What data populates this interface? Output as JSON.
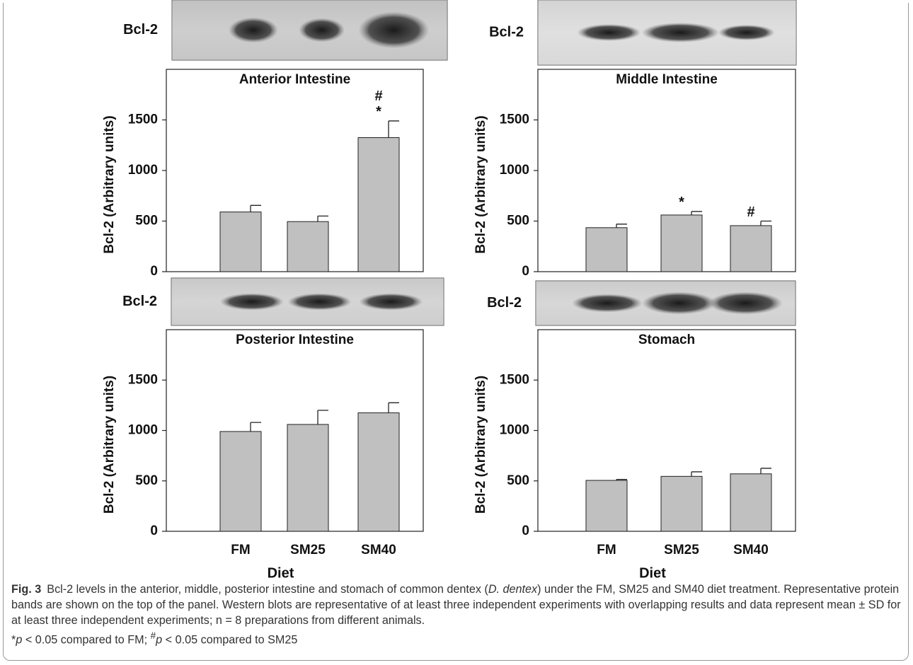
{
  "chart_data": [
    {
      "type": "bar",
      "title": "Anterior Intestine",
      "blot_label": "Bcl-2",
      "ylabel": "Bcl-2 (Arbitrary units)",
      "categories": [
        null,
        null,
        null
      ],
      "values": [
        590,
        495,
        1325
      ],
      "errors": [
        65,
        55,
        165
      ],
      "markers": [
        [],
        [],
        [
          "#",
          "*"
        ]
      ],
      "color": "#c0c0c0",
      "ylim": [
        0,
        2000
      ],
      "yticks": [
        0,
        500,
        1000,
        1500
      ],
      "grid": false
    },
    {
      "type": "bar",
      "title": "Middle Intestine",
      "blot_label": "Bcl-2",
      "ylabel": "Bcl-2 (Arbitrary units)",
      "categories": [
        null,
        null,
        null
      ],
      "values": [
        435,
        560,
        455
      ],
      "errors": [
        35,
        35,
        45
      ],
      "markers": [
        [],
        [
          "*"
        ],
        [
          "#"
        ]
      ],
      "color": "#c0c0c0",
      "ylim": [
        0,
        2000
      ],
      "yticks": [
        0,
        500,
        1000,
        1500
      ],
      "grid": false
    },
    {
      "type": "bar",
      "title": "Posterior Intestine",
      "blot_label": "Bcl-2",
      "ylabel": "Bcl-2 (Arbitrary units)",
      "xlabel": "Diet",
      "categories": [
        "FM",
        "SM25",
        "SM40"
      ],
      "values": [
        990,
        1060,
        1175
      ],
      "errors": [
        90,
        140,
        100
      ],
      "markers": [
        [],
        [],
        []
      ],
      "color": "#c0c0c0",
      "ylim": [
        0,
        2000
      ],
      "yticks": [
        0,
        500,
        1000,
        1500
      ],
      "grid": false
    },
    {
      "type": "bar",
      "title": "Stomach",
      "blot_label": "Bcl-2",
      "ylabel": "Bcl-2 (Arbitrary units)",
      "xlabel": "Diet",
      "categories": [
        "FM",
        "SM25",
        "SM40"
      ],
      "values": [
        505,
        545,
        570
      ],
      "errors": [
        10,
        45,
        55
      ],
      "markers": [
        [],
        [],
        []
      ],
      "color": "#c0c0c0",
      "ylim": [
        0,
        2000
      ],
      "yticks": [
        0,
        500,
        1000,
        1500
      ],
      "grid": false
    }
  ],
  "caption": {
    "label": "Fig. 3",
    "paragraphs": [
      [
        {
          "text": "Bcl-2 levels in the anterior, middle, posterior intestine and stomach of common dentex ("
        },
        {
          "text": "D. dentex",
          "italic": true
        },
        {
          "text": ") under the FM, SM25 and SM40 diet treatment. Representative protein bands are shown on the top of the panel. Western blots are representative of at least three independent experiments with overlapping results and data represent mean ± SD for at least three independent experiments; n = 8 preparations from different animals."
        }
      ],
      [
        {
          "text": "*"
        },
        {
          "text": "p",
          "italic": true
        },
        {
          "text": " < 0.05 compared to FM; "
        },
        {
          "text": "#",
          "sup": true
        },
        {
          "text": "p",
          "italic": true
        },
        {
          "text": " < 0.05 compared to SM25"
        }
      ]
    ]
  }
}
